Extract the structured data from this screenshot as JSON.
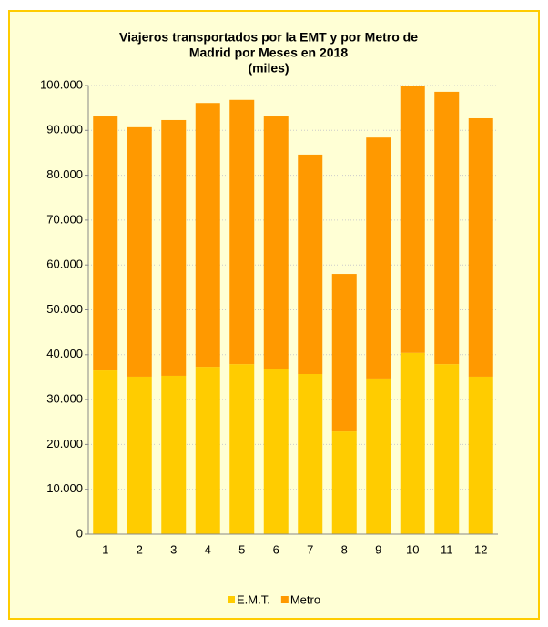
{
  "chart_data": {
    "type": "stacked_bar",
    "title": [
      "Viajeros transportados por la EMT y por Metro de",
      "Madrid por Meses en 2018",
      "(miles)"
    ],
    "categories": [
      "1",
      "2",
      "3",
      "4",
      "5",
      "6",
      "7",
      "8",
      "9",
      "10",
      "11",
      "12"
    ],
    "series": [
      {
        "name": "E.M.T.",
        "color": "#ffcc00",
        "values": [
          36500,
          35100,
          35300,
          37300,
          37900,
          36900,
          35700,
          22900,
          34700,
          40400,
          37900,
          35100
        ]
      },
      {
        "name": "Metro",
        "color": "#ff9900",
        "values": [
          56600,
          55600,
          57000,
          58800,
          58900,
          56200,
          48900,
          35100,
          53700,
          59600,
          60700,
          57600
        ]
      }
    ],
    "ylim": [
      0,
      100000
    ],
    "yticks": [
      0,
      {
        "value": 10000,
        "label": "10.000"
      },
      {
        "value": 20000,
        "label": "20.000"
      },
      {
        "value": 30000,
        "label": "30.000"
      },
      {
        "value": 40000,
        "label": "40.000"
      },
      {
        "value": 50000,
        "label": "50.000"
      },
      {
        "value": 60000,
        "label": "60.000"
      },
      {
        "value": 70000,
        "label": "70.000"
      },
      {
        "value": 80000,
        "label": "80.000"
      },
      {
        "value": 90000,
        "label": "90.000"
      },
      {
        "value": 100000,
        "label": "100.000"
      }
    ],
    "grid": true,
    "legend": "bottom"
  }
}
